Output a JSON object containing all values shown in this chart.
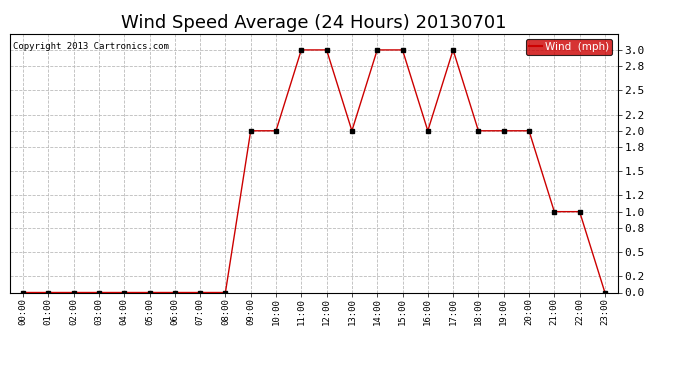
{
  "title": "Wind Speed Average (24 Hours) 20130701",
  "copyright": "Copyright 2013 Cartronics.com",
  "legend_label": "Wind  (mph)",
  "x_labels": [
    "00:00",
    "01:00",
    "02:00",
    "03:00",
    "04:00",
    "05:00",
    "06:00",
    "07:00",
    "08:00",
    "09:00",
    "10:00",
    "11:00",
    "12:00",
    "13:00",
    "14:00",
    "15:00",
    "16:00",
    "17:00",
    "18:00",
    "19:00",
    "20:00",
    "21:00",
    "22:00",
    "23:00"
  ],
  "y_values": [
    0.0,
    0.0,
    0.0,
    0.0,
    0.0,
    0.0,
    0.0,
    0.0,
    0.0,
    2.0,
    2.0,
    3.0,
    3.0,
    2.0,
    3.0,
    3.0,
    2.0,
    3.0,
    2.0,
    2.0,
    2.0,
    1.0,
    1.0,
    0.0
  ],
  "line_color": "#cc0000",
  "marker_color": "#000000",
  "bg_color": "#ffffff",
  "grid_color": "#bbbbbb",
  "ylim": [
    0.0,
    3.2
  ],
  "yticks": [
    0.0,
    0.2,
    0.5,
    0.8,
    1.0,
    1.2,
    1.5,
    1.8,
    2.0,
    2.2,
    2.5,
    2.8,
    3.0
  ],
  "title_fontsize": 13,
  "legend_bg": "#cc0000",
  "legend_text_color": "#ffffff"
}
